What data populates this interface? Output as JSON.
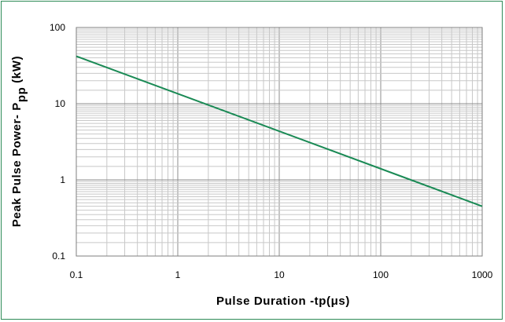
{
  "chart_data": {
    "type": "line",
    "xlabel": "Pulse Duration -tp(μs)",
    "ylabel_main": "Peak Pulse Power- P",
    "ylabel_sub": "pp",
    "ylabel_unit": " (kW)",
    "x_scale": "log",
    "y_scale": "log",
    "xlim": [
      0.1,
      1000
    ],
    "ylim": [
      0.1,
      100
    ],
    "x_ticks": [
      "0.1",
      "1",
      "10",
      "100",
      "1000"
    ],
    "y_ticks": [
      "100",
      "10",
      "1",
      "0.1"
    ],
    "grid": true,
    "line_color": "#1a8a55",
    "series": [
      {
        "x": [
          0.1,
          1000
        ],
        "y": [
          42,
          0.45
        ]
      }
    ]
  }
}
